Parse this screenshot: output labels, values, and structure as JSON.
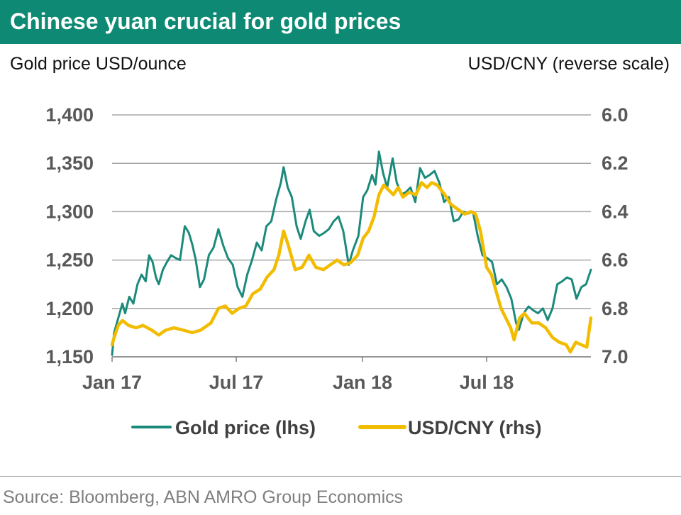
{
  "title": "Chinese yuan crucial for gold prices",
  "source": "Source: Bloomberg, ABN AMRO Group Economics",
  "colors": {
    "header_bg": "#0e8a74",
    "gold": "#1b8a7a",
    "cny": "#f2bc00",
    "grid": "#a6a6a6",
    "tick": "#595959"
  },
  "chart_data": {
    "type": "line",
    "left_axis_title": "Gold price USD/ounce",
    "right_axis_title": "USD/CNY (reverse scale)",
    "x_ticks": [
      "Jan 17",
      "Jul 17",
      "Jan 18",
      "Jul 18"
    ],
    "x_tick_dates": [
      "2017-01-01",
      "2017-07-01",
      "2018-01-01",
      "2018-07-01"
    ],
    "x_range": [
      "2017-01-01",
      "2018-11-30"
    ],
    "left_axis": {
      "min": 1150,
      "max": 1400,
      "ticks": [
        "1,400",
        "1,350",
        "1,300",
        "1,250",
        "1,200",
        "1,150"
      ]
    },
    "right_axis": {
      "min": 6.0,
      "max": 7.0,
      "reversed": true,
      "ticks": [
        "6.0",
        "6.2",
        "6.4",
        "6.6",
        "6.8",
        "7.0"
      ]
    },
    "grid": "horizontal",
    "legend_position": "bottom",
    "series": [
      {
        "name": "Gold price (lhs)",
        "axis": "left",
        "color": "#1b8a7a",
        "points": [
          [
            "2017-01-01",
            1152
          ],
          [
            "2017-01-04",
            1175
          ],
          [
            "2017-01-10",
            1190
          ],
          [
            "2017-01-16",
            1205
          ],
          [
            "2017-01-20",
            1195
          ],
          [
            "2017-01-26",
            1212
          ],
          [
            "2017-02-01",
            1205
          ],
          [
            "2017-02-07",
            1225
          ],
          [
            "2017-02-13",
            1235
          ],
          [
            "2017-02-19",
            1228
          ],
          [
            "2017-02-24",
            1255
          ],
          [
            "2017-03-01",
            1248
          ],
          [
            "2017-03-06",
            1232
          ],
          [
            "2017-03-10",
            1225
          ],
          [
            "2017-03-16",
            1240
          ],
          [
            "2017-03-22",
            1248
          ],
          [
            "2017-03-28",
            1255
          ],
          [
            "2017-04-04",
            1252
          ],
          [
            "2017-04-10",
            1250
          ],
          [
            "2017-04-17",
            1285
          ],
          [
            "2017-04-23",
            1278
          ],
          [
            "2017-04-28",
            1266
          ],
          [
            "2017-05-03",
            1250
          ],
          [
            "2017-05-09",
            1222
          ],
          [
            "2017-05-15",
            1230
          ],
          [
            "2017-05-22",
            1255
          ],
          [
            "2017-05-29",
            1263
          ],
          [
            "2017-06-05",
            1282
          ],
          [
            "2017-06-12",
            1265
          ],
          [
            "2017-06-19",
            1252
          ],
          [
            "2017-06-26",
            1245
          ],
          [
            "2017-07-03",
            1222
          ],
          [
            "2017-07-10",
            1212
          ],
          [
            "2017-07-17",
            1235
          ],
          [
            "2017-07-24",
            1250
          ],
          [
            "2017-07-31",
            1268
          ],
          [
            "2017-08-07",
            1260
          ],
          [
            "2017-08-14",
            1285
          ],
          [
            "2017-08-21",
            1290
          ],
          [
            "2017-08-28",
            1312
          ],
          [
            "2017-09-04",
            1330
          ],
          [
            "2017-09-08",
            1346
          ],
          [
            "2017-09-14",
            1325
          ],
          [
            "2017-09-20",
            1315
          ],
          [
            "2017-09-27",
            1285
          ],
          [
            "2017-10-03",
            1272
          ],
          [
            "2017-10-10",
            1290
          ],
          [
            "2017-10-16",
            1302
          ],
          [
            "2017-10-22",
            1280
          ],
          [
            "2017-10-30",
            1275
          ],
          [
            "2017-11-06",
            1278
          ],
          [
            "2017-11-13",
            1282
          ],
          [
            "2017-11-20",
            1290
          ],
          [
            "2017-11-27",
            1295
          ],
          [
            "2017-12-04",
            1280
          ],
          [
            "2017-12-12",
            1245
          ],
          [
            "2017-12-18",
            1260
          ],
          [
            "2017-12-26",
            1275
          ],
          [
            "2018-01-02",
            1315
          ],
          [
            "2018-01-08",
            1322
          ],
          [
            "2018-01-15",
            1338
          ],
          [
            "2018-01-20",
            1328
          ],
          [
            "2018-01-25",
            1362
          ],
          [
            "2018-01-31",
            1340
          ],
          [
            "2018-02-06",
            1325
          ],
          [
            "2018-02-14",
            1355
          ],
          [
            "2018-02-20",
            1330
          ],
          [
            "2018-02-27",
            1318
          ],
          [
            "2018-03-05",
            1320
          ],
          [
            "2018-03-12",
            1325
          ],
          [
            "2018-03-19",
            1310
          ],
          [
            "2018-03-26",
            1345
          ],
          [
            "2018-04-02",
            1335
          ],
          [
            "2018-04-09",
            1338
          ],
          [
            "2018-04-16",
            1342
          ],
          [
            "2018-04-23",
            1330
          ],
          [
            "2018-04-30",
            1310
          ],
          [
            "2018-05-07",
            1315
          ],
          [
            "2018-05-14",
            1290
          ],
          [
            "2018-05-21",
            1292
          ],
          [
            "2018-05-28",
            1300
          ],
          [
            "2018-06-04",
            1298
          ],
          [
            "2018-06-11",
            1300
          ],
          [
            "2018-06-18",
            1275
          ],
          [
            "2018-06-25",
            1255
          ],
          [
            "2018-07-02",
            1252
          ],
          [
            "2018-07-09",
            1248
          ],
          [
            "2018-07-16",
            1225
          ],
          [
            "2018-07-23",
            1230
          ],
          [
            "2018-07-30",
            1222
          ],
          [
            "2018-08-06",
            1210
          ],
          [
            "2018-08-13",
            1185
          ],
          [
            "2018-08-17",
            1178
          ],
          [
            "2018-08-24",
            1195
          ],
          [
            "2018-08-31",
            1202
          ],
          [
            "2018-09-07",
            1198
          ],
          [
            "2018-09-14",
            1195
          ],
          [
            "2018-09-21",
            1200
          ],
          [
            "2018-09-28",
            1188
          ],
          [
            "2018-10-05",
            1200
          ],
          [
            "2018-10-12",
            1225
          ],
          [
            "2018-10-19",
            1228
          ],
          [
            "2018-10-26",
            1232
          ],
          [
            "2018-11-02",
            1230
          ],
          [
            "2018-11-09",
            1210
          ],
          [
            "2018-11-16",
            1222
          ],
          [
            "2018-11-23",
            1225
          ],
          [
            "2018-11-30",
            1240
          ]
        ]
      },
      {
        "name": "USD/CNY (rhs)",
        "axis": "right",
        "color": "#f2bc00",
        "points": [
          [
            "2017-01-01",
            6.95
          ],
          [
            "2017-01-04",
            6.92
          ],
          [
            "2017-01-10",
            6.87
          ],
          [
            "2017-01-16",
            6.85
          ],
          [
            "2017-01-25",
            6.87
          ],
          [
            "2017-02-05",
            6.88
          ],
          [
            "2017-02-15",
            6.87
          ],
          [
            "2017-02-28",
            6.89
          ],
          [
            "2017-03-10",
            6.91
          ],
          [
            "2017-03-20",
            6.89
          ],
          [
            "2017-04-01",
            6.88
          ],
          [
            "2017-04-15",
            6.89
          ],
          [
            "2017-04-28",
            6.9
          ],
          [
            "2017-05-10",
            6.89
          ],
          [
            "2017-05-25",
            6.86
          ],
          [
            "2017-06-05",
            6.8
          ],
          [
            "2017-06-15",
            6.79
          ],
          [
            "2017-06-25",
            6.82
          ],
          [
            "2017-07-05",
            6.8
          ],
          [
            "2017-07-15",
            6.79
          ],
          [
            "2017-07-25",
            6.74
          ],
          [
            "2017-08-05",
            6.72
          ],
          [
            "2017-08-15",
            6.67
          ],
          [
            "2017-08-25",
            6.64
          ],
          [
            "2017-09-01",
            6.58
          ],
          [
            "2017-09-08",
            6.48
          ],
          [
            "2017-09-15",
            6.54
          ],
          [
            "2017-09-25",
            6.64
          ],
          [
            "2017-10-05",
            6.63
          ],
          [
            "2017-10-15",
            6.58
          ],
          [
            "2017-10-25",
            6.63
          ],
          [
            "2017-11-05",
            6.64
          ],
          [
            "2017-11-15",
            6.62
          ],
          [
            "2017-11-25",
            6.6
          ],
          [
            "2017-12-05",
            6.62
          ],
          [
            "2017-12-15",
            6.61
          ],
          [
            "2017-12-25",
            6.58
          ],
          [
            "2018-01-02",
            6.51
          ],
          [
            "2018-01-10",
            6.48
          ],
          [
            "2018-01-18",
            6.42
          ],
          [
            "2018-01-25",
            6.33
          ],
          [
            "2018-02-01",
            6.29
          ],
          [
            "2018-02-08",
            6.31
          ],
          [
            "2018-02-15",
            6.33
          ],
          [
            "2018-02-22",
            6.3
          ],
          [
            "2018-03-01",
            6.34
          ],
          [
            "2018-03-10",
            6.32
          ],
          [
            "2018-03-20",
            6.33
          ],
          [
            "2018-03-28",
            6.28
          ],
          [
            "2018-04-05",
            6.3
          ],
          [
            "2018-04-12",
            6.28
          ],
          [
            "2018-04-20",
            6.29
          ],
          [
            "2018-05-01",
            6.33
          ],
          [
            "2018-05-10",
            6.37
          ],
          [
            "2018-05-20",
            6.39
          ],
          [
            "2018-05-30",
            6.41
          ],
          [
            "2018-06-08",
            6.4
          ],
          [
            "2018-06-15",
            6.41
          ],
          [
            "2018-06-22",
            6.48
          ],
          [
            "2018-07-01",
            6.63
          ],
          [
            "2018-07-08",
            6.66
          ],
          [
            "2018-07-15",
            6.73
          ],
          [
            "2018-07-22",
            6.8
          ],
          [
            "2018-07-29",
            6.84
          ],
          [
            "2018-08-05",
            6.88
          ],
          [
            "2018-08-10",
            6.93
          ],
          [
            "2018-08-18",
            6.84
          ],
          [
            "2018-08-25",
            6.82
          ],
          [
            "2018-09-05",
            6.86
          ],
          [
            "2018-09-15",
            6.86
          ],
          [
            "2018-09-25",
            6.88
          ],
          [
            "2018-10-05",
            6.92
          ],
          [
            "2018-10-15",
            6.94
          ],
          [
            "2018-10-25",
            6.95
          ],
          [
            "2018-10-31",
            6.98
          ],
          [
            "2018-11-08",
            6.94
          ],
          [
            "2018-11-16",
            6.95
          ],
          [
            "2018-11-24",
            6.96
          ],
          [
            "2018-11-30",
            6.84
          ]
        ]
      }
    ]
  }
}
